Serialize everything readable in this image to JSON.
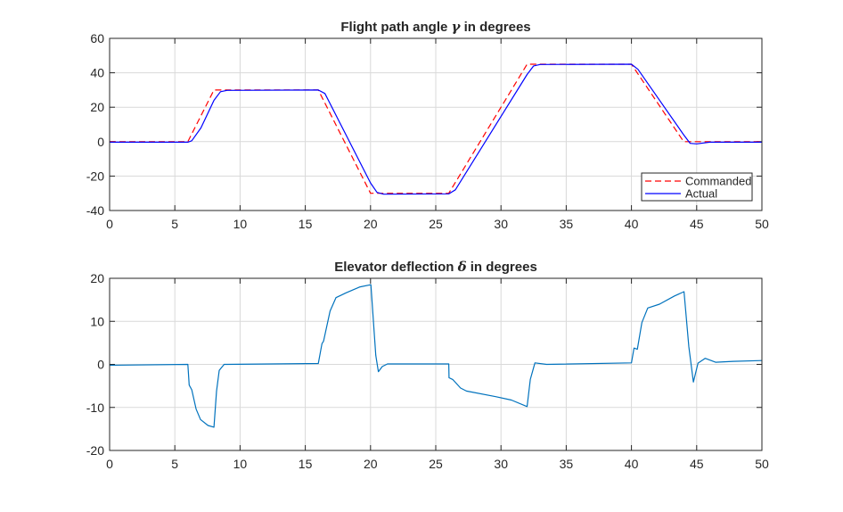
{
  "chart_data": [
    {
      "type": "line",
      "title": "Flight path angle γ in degrees",
      "title_parts": {
        "before": "Flight  path  angle ",
        "symbol": "γ",
        "after": "  in  degrees"
      },
      "xlim": [
        0,
        50
      ],
      "ylim": [
        -40,
        60
      ],
      "xticks": [
        0,
        5,
        10,
        15,
        20,
        25,
        30,
        35,
        40,
        45,
        50
      ],
      "yticks": [
        -40,
        -20,
        0,
        20,
        40,
        60
      ],
      "grid": true,
      "legend": "bottom-right",
      "series": [
        {
          "name": "Commanded",
          "color": "#ff0000",
          "style": "dashed",
          "x": [
            0,
            6,
            8,
            16,
            20,
            26,
            32,
            40,
            44,
            50
          ],
          "y": [
            0,
            0,
            30,
            30,
            -30,
            -30,
            45,
            45,
            0,
            0
          ]
        },
        {
          "name": "Actual",
          "color": "#0000ff",
          "style": "solid",
          "x": [
            0,
            6,
            6.3,
            7,
            8,
            8.5,
            9,
            16,
            16.5,
            20,
            20.5,
            21,
            26,
            26.5,
            32,
            32.5,
            33,
            40,
            40.5,
            44,
            44.5,
            45,
            46,
            50
          ],
          "y": [
            -0.3,
            -0.3,
            0.5,
            8,
            24,
            29,
            29.8,
            30,
            28,
            -24,
            -29.5,
            -30.5,
            -30.3,
            -28,
            39,
            44,
            44.8,
            45,
            42,
            4,
            -1,
            -1.3,
            -0.3,
            -0.3
          ]
        }
      ]
    },
    {
      "type": "line",
      "title": "Elevator deflection δ in degrees",
      "title_parts": {
        "before": "Elevator  deflection ",
        "symbol": "δ",
        "after": "  in  degrees"
      },
      "xlim": [
        0,
        50
      ],
      "ylim": [
        -20,
        20
      ],
      "xticks": [
        0,
        5,
        10,
        15,
        20,
        25,
        30,
        35,
        40,
        45,
        50
      ],
      "yticks": [
        -20,
        -10,
        0,
        10,
        20
      ],
      "grid": true,
      "series": [
        {
          "color": "#0072bd",
          "style": "solid",
          "x": [
            0,
            6,
            6.1,
            6.3,
            6.63,
            6.97,
            7.54,
            8.0,
            8.2,
            8.4,
            8.78,
            16,
            16.28,
            16.4,
            16.9,
            17.35,
            18.1,
            19.2,
            20.03,
            20.4,
            20.6,
            20.9,
            21.3,
            26,
            26.02,
            26.3,
            26.9,
            27.35,
            29.6,
            30.8,
            32.0,
            32.25,
            32.6,
            33.5,
            40.0,
            40.2,
            40.45,
            40.8,
            41.25,
            42.15,
            43.3,
            44.03,
            44.4,
            44.75,
            45.1,
            45.65,
            46.45,
            47.8,
            50
          ],
          "y": [
            -0.2,
            0,
            -4.8,
            -5.9,
            -10.4,
            -12.8,
            -14.2,
            -14.6,
            -6.2,
            -1.4,
            0,
            0.2,
            4.8,
            5.4,
            12.4,
            15.5,
            16.6,
            18,
            18.5,
            2.1,
            -1.7,
            -0.5,
            0.1,
            0.1,
            -3.1,
            -3.5,
            -5.5,
            -6.2,
            -7.5,
            -8.3,
            -9.8,
            -3.5,
            0.35,
            0,
            0.35,
            3.8,
            3.5,
            9.7,
            13.1,
            14,
            15.9,
            16.9,
            4.1,
            -4.1,
            0.3,
            1.4,
            0.5,
            0.7,
            0.9
          ]
        }
      ]
    }
  ]
}
